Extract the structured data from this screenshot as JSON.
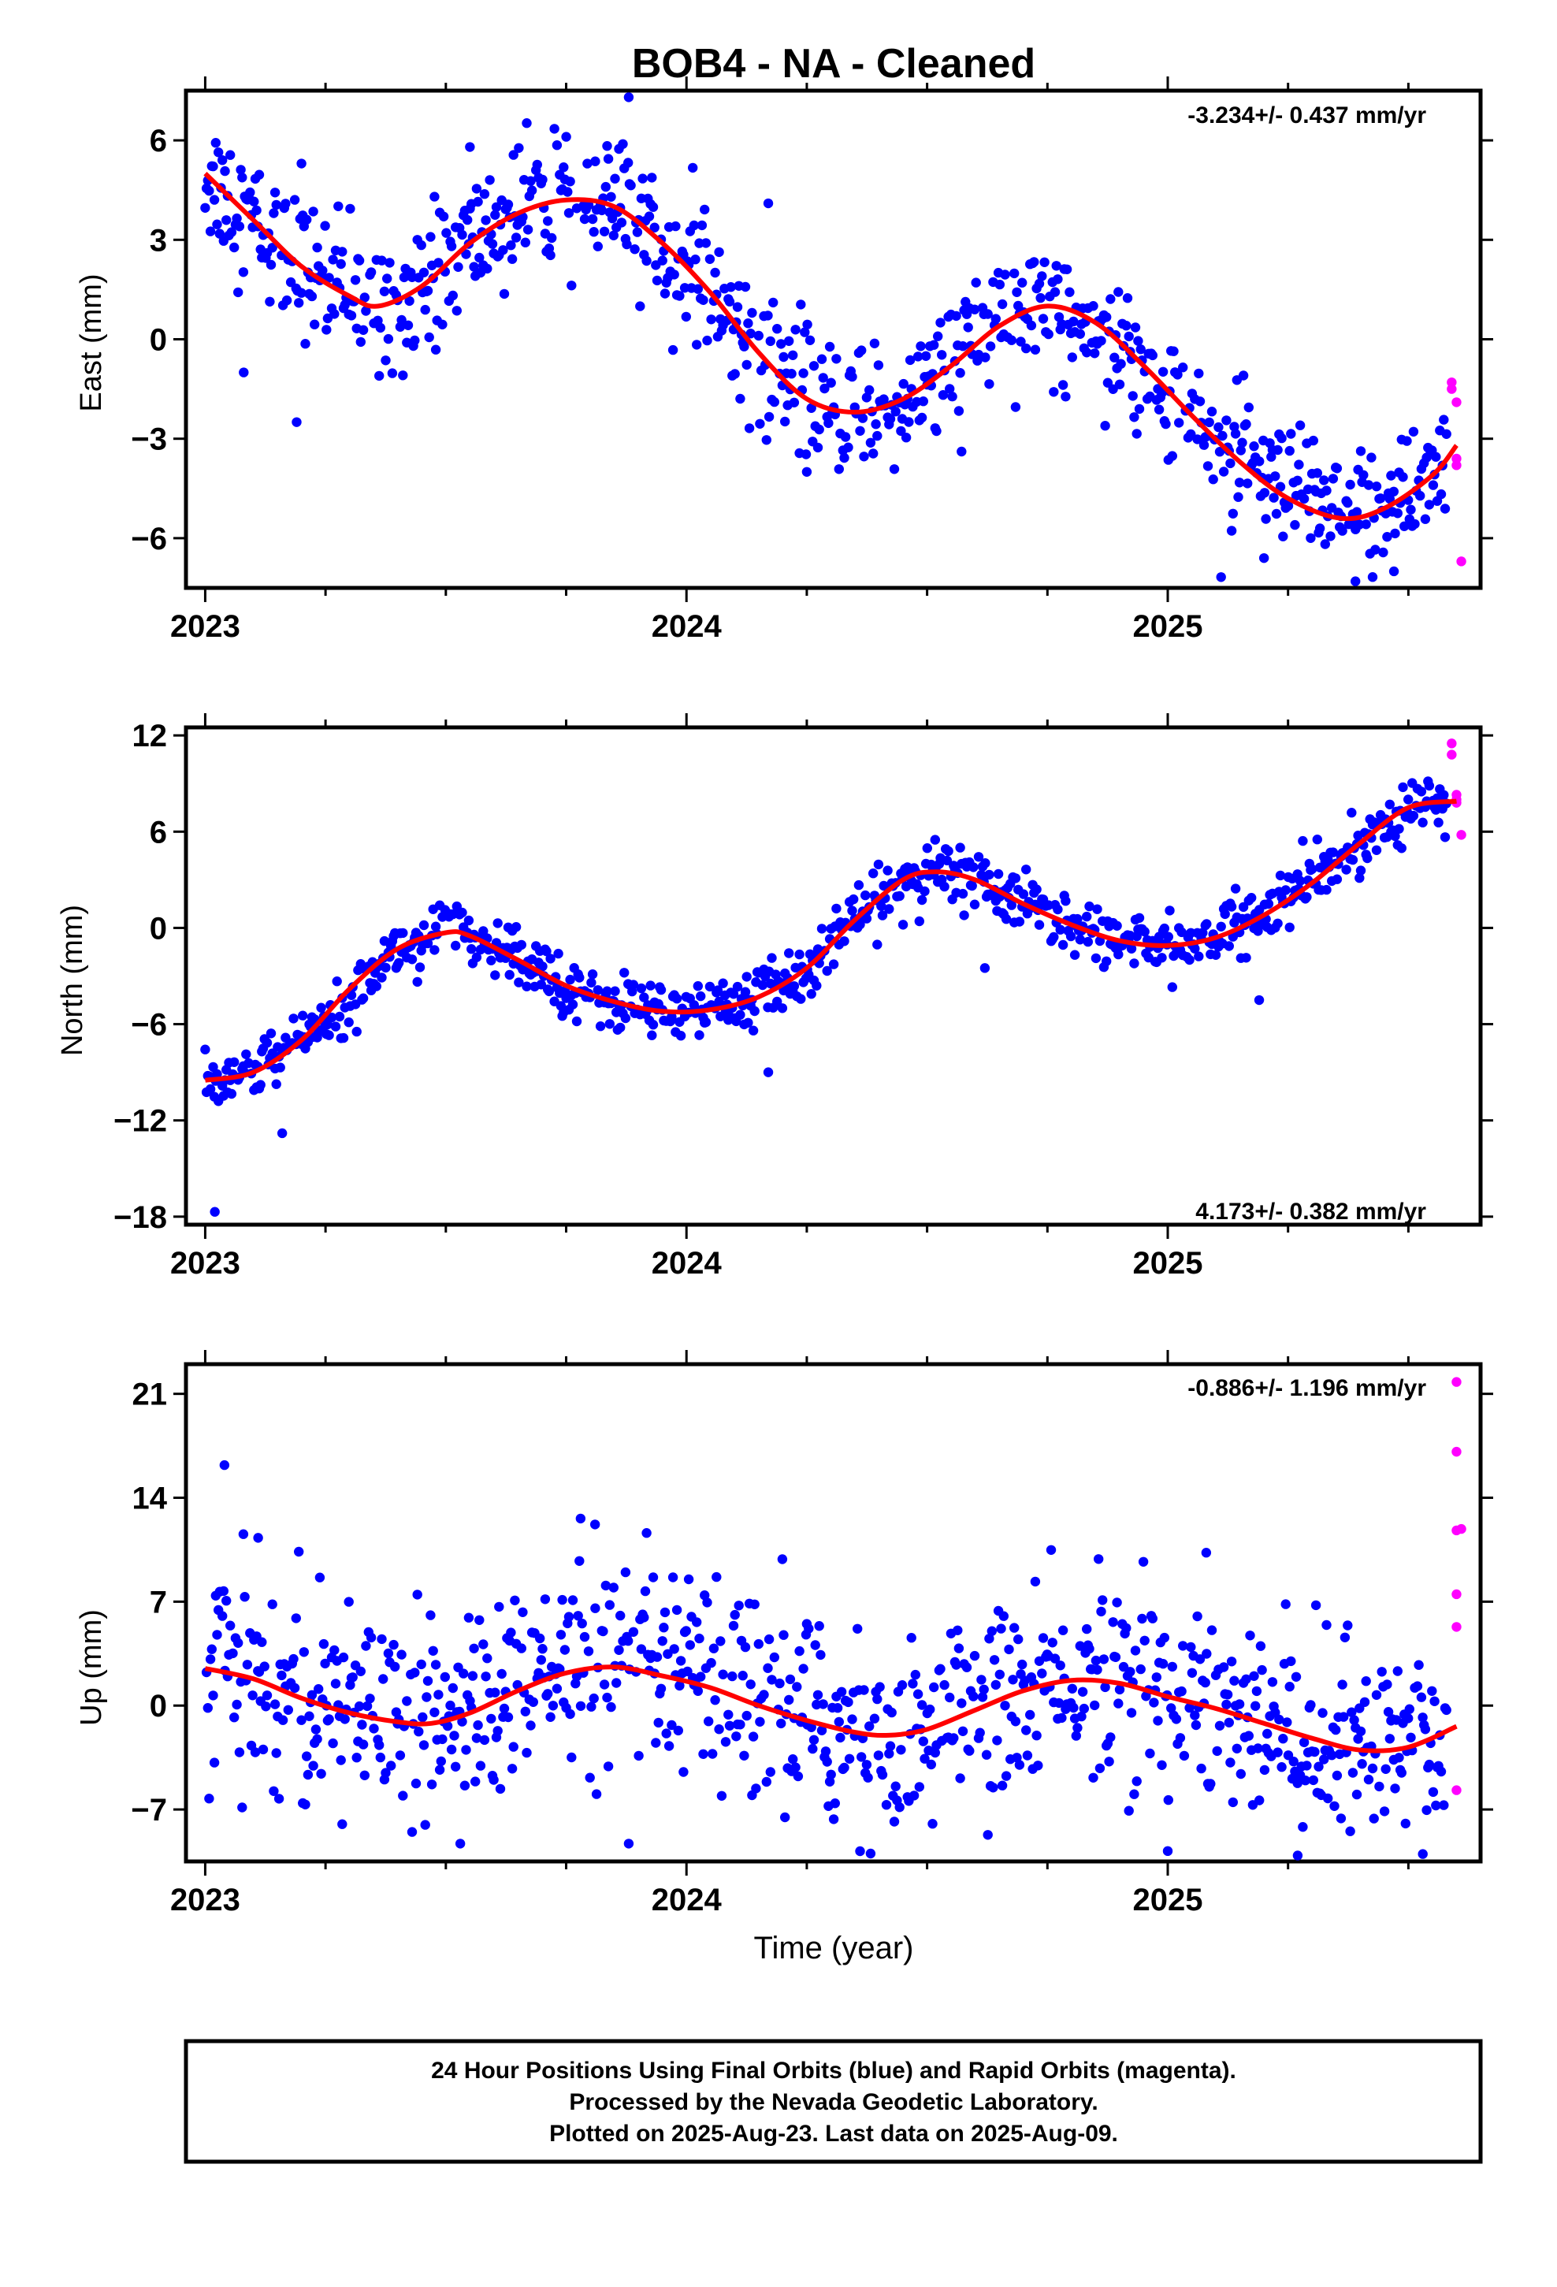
{
  "title": "BOB4  - NA - Cleaned",
  "xlabel": "Time (year)",
  "footer": {
    "line1": "24 Hour Positions Using Final Orbits (blue) and Rapid Orbits (magenta).",
    "line2": "Processed by the Nevada Geodetic Laboratory.",
    "line3": "Plotted on 2025-Aug-23. Last data on 2025-Aug-09."
  },
  "colors": {
    "final": "#0000ff",
    "rapid": "#ff00ff",
    "fit": "#ff0000",
    "frame": "#000000"
  },
  "chart_data": [
    {
      "type": "scatter",
      "panel": "east",
      "ylabel": "East (mm)",
      "rate_label": "-3.234+/- 0.437 mm/yr",
      "xlim": [
        2022.96,
        2025.65
      ],
      "ylim": [
        -7.5,
        7.5
      ],
      "xticks": [
        2023,
        2024,
        2025
      ],
      "xtick_labels": [
        "2023",
        "2024",
        "2025"
      ],
      "yticks": [
        -6,
        -3,
        0,
        3,
        6
      ],
      "ytick_labels": [
        "−6",
        "−3",
        "0",
        "3",
        "6"
      ],
      "fit": {
        "x": [
          2023.0,
          2023.1,
          2023.2,
          2023.3,
          2023.36,
          2023.45,
          2023.55,
          2023.65,
          2023.75,
          2023.85,
          2023.95,
          2024.05,
          2024.15,
          2024.25,
          2024.35,
          2024.45,
          2024.55,
          2024.65,
          2024.75,
          2024.85,
          2024.95,
          2025.05,
          2025.15,
          2025.25,
          2025.36,
          2025.45,
          2025.55,
          2025.6
        ],
        "y": [
          5.0,
          3.6,
          2.2,
          1.3,
          1.0,
          1.6,
          2.9,
          3.8,
          4.2,
          4.0,
          2.9,
          1.4,
          -0.4,
          -1.8,
          -2.2,
          -1.8,
          -0.8,
          0.4,
          1.0,
          0.5,
          -0.8,
          -2.3,
          -3.7,
          -4.8,
          -5.4,
          -5.1,
          -4.1,
          -3.2
        ]
      },
      "rapid": {
        "x": [
          2025.59,
          2025.59,
          2025.6,
          2025.6,
          2025.6,
          2025.61
        ],
        "y": [
          -1.3,
          -1.5,
          -1.9,
          -3.6,
          -3.8,
          -6.7
        ]
      },
      "noise": 1.0,
      "outliers": {
        "x": [
          2023.08,
          2023.2,
          2023.19,
          2023.55,
          2023.88,
          2024.17,
          2024.25,
          2025.2,
          2025.39,
          2025.47
        ],
        "y": [
          -1.0,
          5.3,
          -2.5,
          5.8,
          7.3,
          4.1,
          -4.0,
          -6.6,
          -7.3,
          -7.0
        ]
      }
    },
    {
      "type": "scatter",
      "panel": "north",
      "ylabel": "North (mm)",
      "rate_label": "4.173+/- 0.382 mm/yr",
      "xlim": [
        2022.96,
        2025.65
      ],
      "ylim": [
        -18.5,
        12.5
      ],
      "xticks": [
        2023,
        2024,
        2025
      ],
      "xtick_labels": [
        "2023",
        "2024",
        "2025"
      ],
      "yticks": [
        -18,
        -12,
        -6,
        0,
        6,
        12
      ],
      "ytick_labels": [
        "−18",
        "−12",
        "−6",
        "0",
        "6",
        "12"
      ],
      "fit": {
        "x": [
          2023.0,
          2023.1,
          2023.2,
          2023.3,
          2023.4,
          2023.5,
          2023.55,
          2023.65,
          2023.75,
          2023.85,
          2023.95,
          2024.05,
          2024.15,
          2024.25,
          2024.35,
          2024.45,
          2024.52,
          2024.6,
          2024.7,
          2024.8,
          2024.9,
          2025.0,
          2025.1,
          2025.2,
          2025.3,
          2025.4,
          2025.5,
          2025.6
        ],
        "y": [
          -9.5,
          -9.0,
          -7.0,
          -3.8,
          -1.3,
          -0.3,
          -0.5,
          -2.0,
          -3.6,
          -4.6,
          -5.2,
          -5.1,
          -4.3,
          -2.5,
          0.5,
          3.0,
          3.5,
          3.0,
          1.5,
          0.2,
          -0.8,
          -1.1,
          -0.6,
          0.8,
          2.8,
          5.3,
          7.5,
          7.9
        ]
      },
      "rapid": {
        "x": [
          2025.59,
          2025.59,
          2025.6,
          2025.6,
          2025.6,
          2025.61
        ],
        "y": [
          11.5,
          10.8,
          8.3,
          8.0,
          7.8,
          5.8
        ]
      },
      "noise": 0.9,
      "outliers": {
        "x": [
          2023.02,
          2023.16,
          2024.17,
          2024.45,
          2024.62,
          2025.19,
          2024.08
        ],
        "y": [
          -17.7,
          -12.8,
          -9.0,
          0.2,
          -2.5,
          -4.5,
          -4.2
        ]
      }
    },
    {
      "type": "scatter",
      "panel": "up",
      "ylabel": "Up (mm)",
      "rate_label": "-0.886+/- 1.196 mm/yr",
      "xlim": [
        2022.96,
        2025.65
      ],
      "ylim": [
        -10.5,
        23
      ],
      "xticks": [
        2023,
        2024,
        2025
      ],
      "xtick_labels": [
        "2023",
        "2024",
        "2025"
      ],
      "yticks": [
        -7,
        0,
        7,
        14,
        21
      ],
      "ytick_labels": [
        "−7",
        "0",
        "7",
        "14",
        "21"
      ],
      "fit": {
        "x": [
          2023.0,
          2023.1,
          2023.2,
          2023.3,
          2023.4,
          2023.47,
          2023.55,
          2023.65,
          2023.75,
          2023.85,
          2023.95,
          2024.05,
          2024.15,
          2024.25,
          2024.35,
          2024.42,
          2024.5,
          2024.6,
          2024.7,
          2024.8,
          2024.9,
          2025.0,
          2025.1,
          2025.2,
          2025.3,
          2025.4,
          2025.5,
          2025.6
        ],
        "y": [
          2.5,
          1.8,
          0.5,
          -0.5,
          -1.1,
          -1.2,
          -0.5,
          1.0,
          2.2,
          2.6,
          2.0,
          1.2,
          0.0,
          -1.0,
          -1.8,
          -2.0,
          -1.6,
          -0.3,
          1.0,
          1.7,
          1.5,
          0.6,
          -0.2,
          -1.2,
          -2.2,
          -3.0,
          -2.8,
          -1.4
        ]
      },
      "rapid": {
        "x": [
          2025.6,
          2025.6,
          2025.6,
          2025.61,
          2025.6,
          2025.6,
          2025.6
        ],
        "y": [
          21.8,
          17.1,
          11.8,
          11.9,
          7.5,
          5.3,
          -5.7
        ]
      },
      "noise": 3.3,
      "outliers": {
        "x": [
          2023.04,
          2023.11,
          2023.53,
          2023.78,
          2023.81,
          2023.88,
          2024.25,
          2025.0,
          2025.08,
          2025.27,
          2025.53
        ],
        "y": [
          16.2,
          11.3,
          -9.3,
          12.6,
          12.2,
          -9.3,
          5.5,
          -9.8,
          10.3,
          -10.1,
          -10.0
        ]
      }
    }
  ]
}
